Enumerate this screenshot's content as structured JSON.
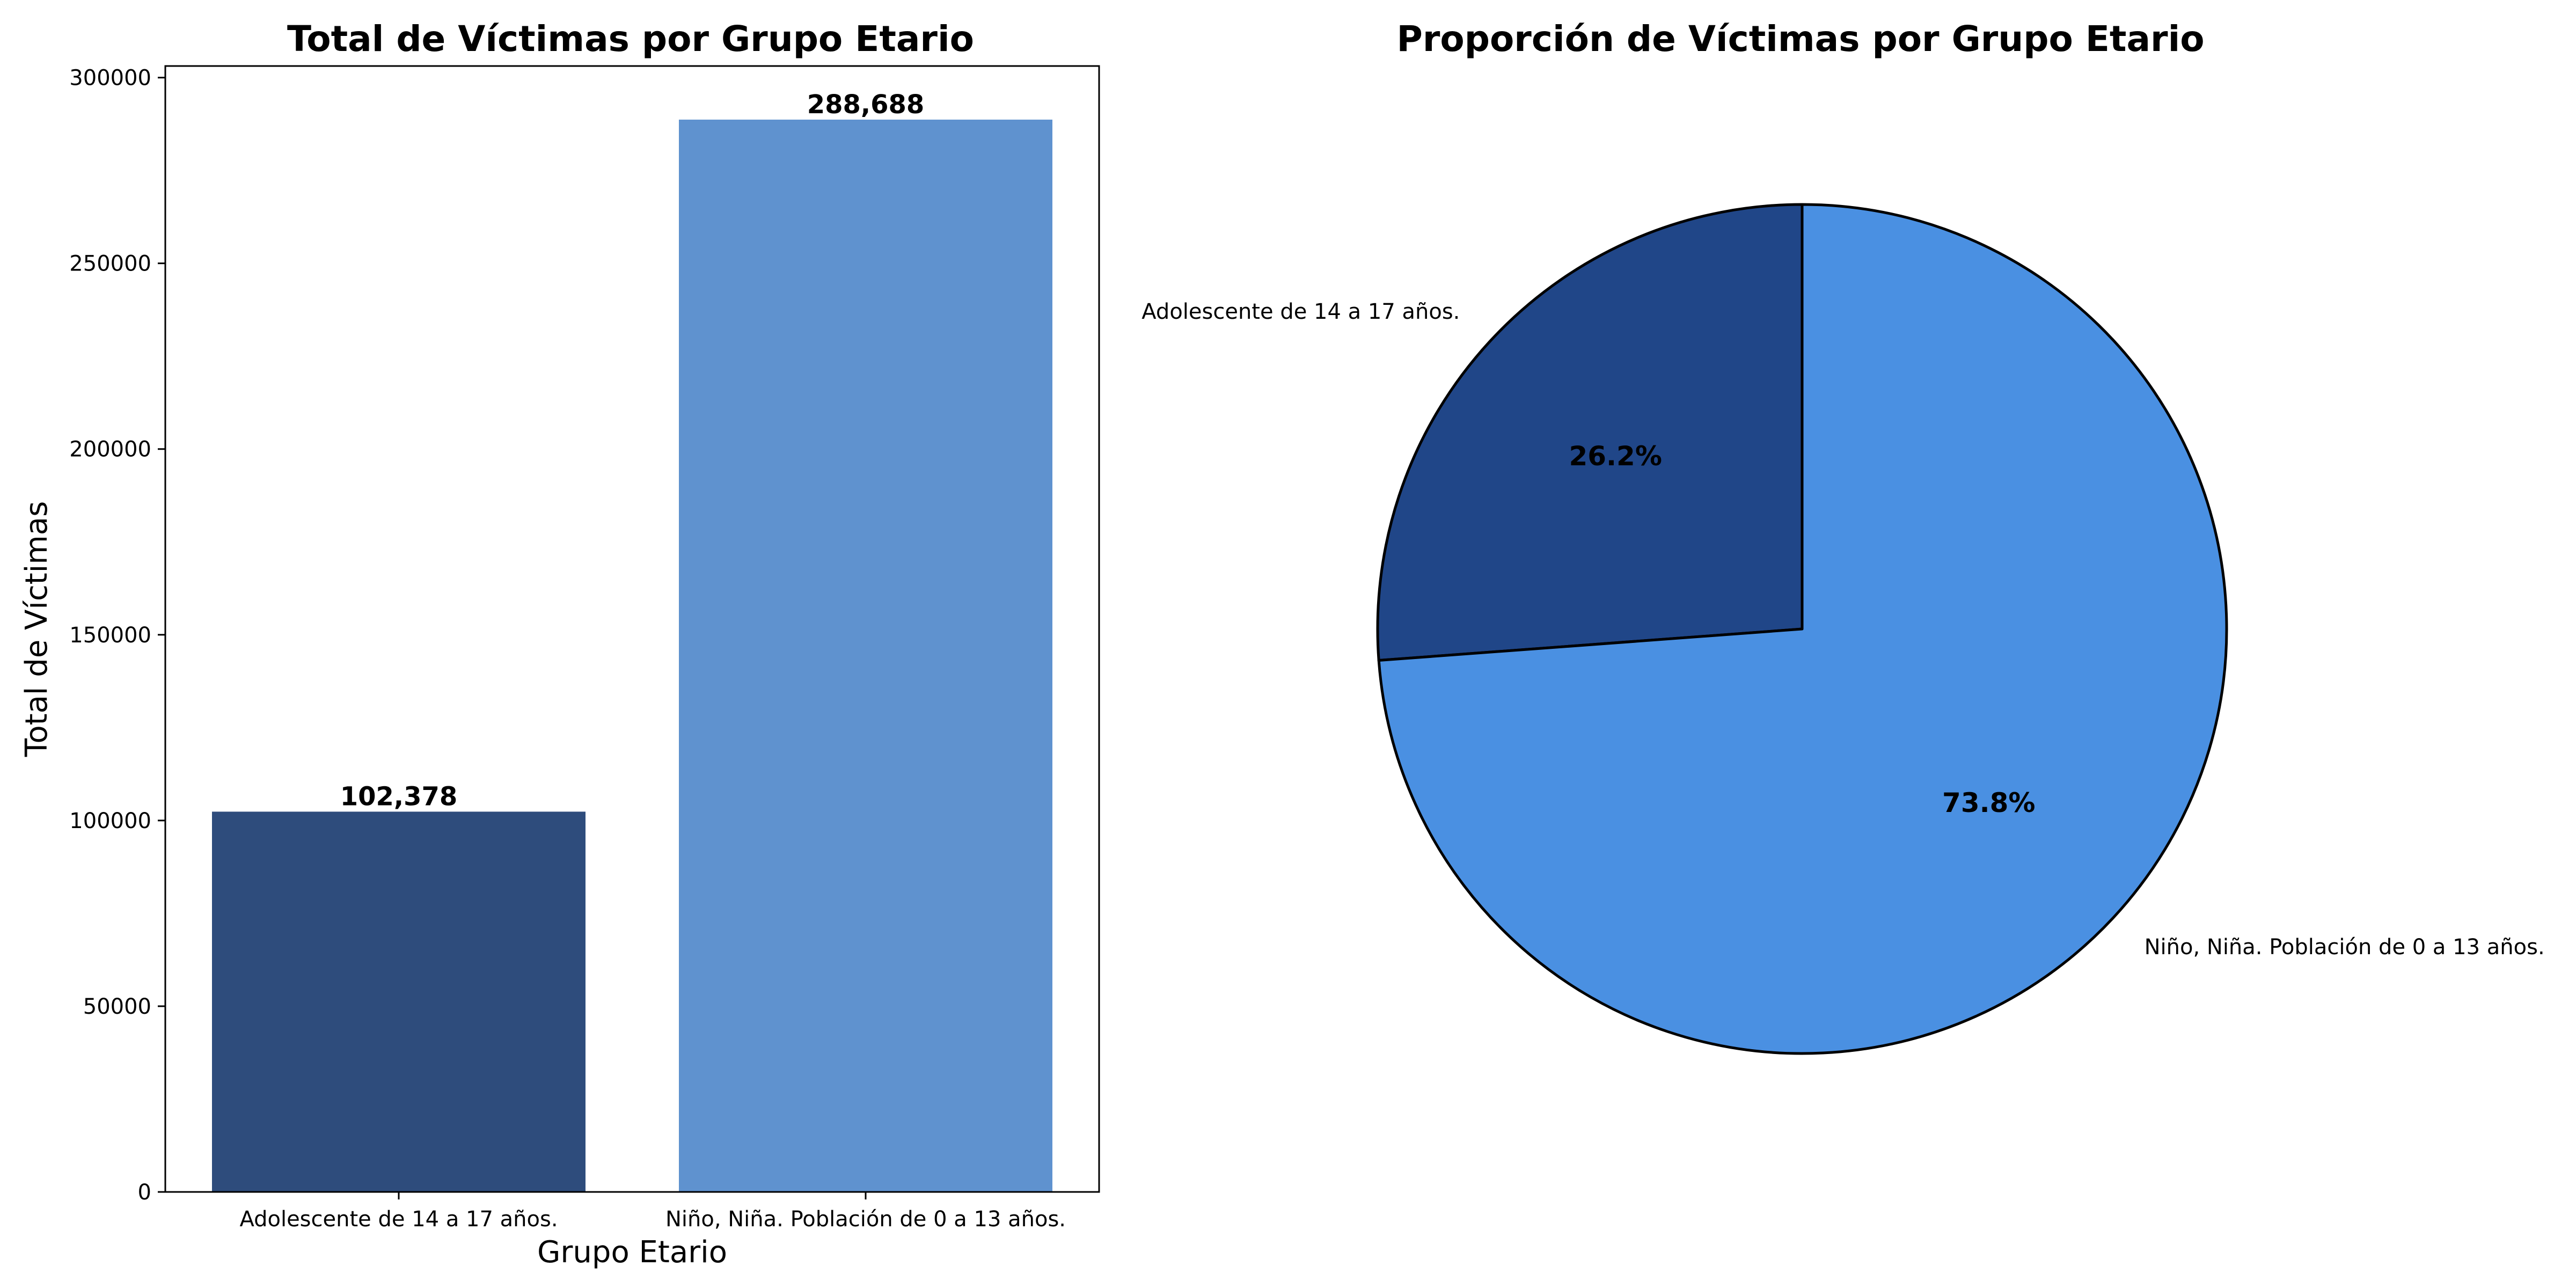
{
  "chart_data": [
    {
      "type": "bar",
      "title": "Total de Víctimas por Grupo Etario",
      "xlabel": "Grupo Etario",
      "ylabel": "Total de Víctimas",
      "categories": [
        "Adolescente de 14 a 17 años.",
        "Niño, Niña. Población de 0 a 13 años."
      ],
      "values": [
        102378,
        288688
      ],
      "value_labels": [
        "102,378",
        "288,688"
      ],
      "colors": [
        "#2e4c7c",
        "#5f92cf"
      ],
      "ylim": [
        0,
        303122
      ],
      "yticks": [
        0,
        50000,
        100000,
        150000,
        200000,
        250000,
        300000
      ],
      "ytick_labels": [
        "0",
        "50000",
        "100000",
        "150000",
        "200000",
        "250000",
        "300000"
      ],
      "grid": false
    },
    {
      "type": "pie",
      "title": "Proporción de Víctimas por Grupo Etario",
      "labels": [
        "Adolescente de 14 a 17 años.",
        "Niño, Niña. Población de 0 a 13 años."
      ],
      "values": [
        102378,
        288688
      ],
      "percent_labels": [
        "26.2%",
        "73.8%"
      ],
      "colors": [
        "#204688",
        "#4a90e2"
      ],
      "start_angle": 90,
      "direction": "counterclockwise"
    }
  ]
}
